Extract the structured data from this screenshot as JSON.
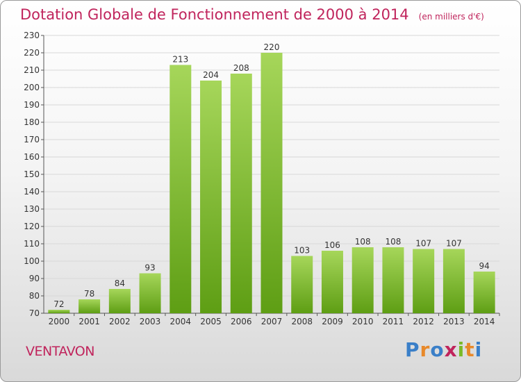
{
  "title": "Dotation Globale de Fonctionnement de 2000 à 2014",
  "title_unit": "(en milliers d'€)",
  "commune": "VENTAVON",
  "logo": {
    "text": "Proxiti",
    "colors": [
      "#3a7fc8",
      "#e8892a",
      "#3a7fc8",
      "#c0245c",
      "#7aba28",
      "#e8892a",
      "#3a7fc8"
    ]
  },
  "colors": {
    "title": "#c0245c",
    "bar_light": "#a6d65a",
    "bar_dark": "#5e9e14",
    "grid": "#d8d8d8"
  },
  "chart_data": {
    "type": "bar",
    "title": "Dotation Globale de Fonctionnement de 2000 à 2014",
    "xlabel": "",
    "ylabel": "",
    "ylim": [
      70,
      230
    ],
    "yticks": [
      70,
      80,
      90,
      100,
      110,
      120,
      130,
      140,
      150,
      160,
      170,
      180,
      190,
      200,
      210,
      220,
      230
    ],
    "grid": true,
    "categories": [
      "2000",
      "2001",
      "2002",
      "2003",
      "2004",
      "2005",
      "2006",
      "2007",
      "2008",
      "2009",
      "2010",
      "2011",
      "2012",
      "2013",
      "2014"
    ],
    "values": [
      72,
      78,
      84,
      93,
      213,
      204,
      208,
      220,
      103,
      106,
      108,
      108,
      107,
      107,
      94
    ]
  }
}
